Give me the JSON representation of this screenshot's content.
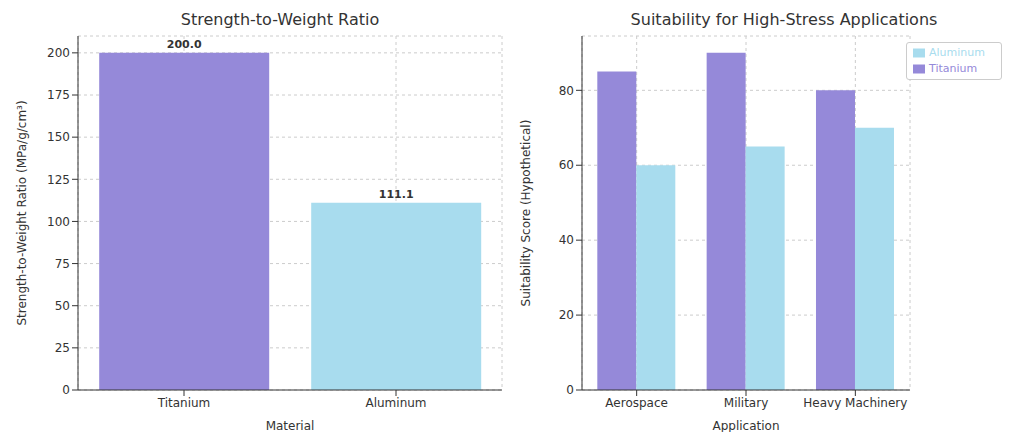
{
  "chart_data": [
    {
      "type": "bar",
      "title": "Strength-to-Weight Ratio",
      "x_label": "Material",
      "y_label": "Strength-to-Weight Ratio (MPa/g/cm³)",
      "categories": [
        "Titanium",
        "Aluminum"
      ],
      "values": [
        200.0,
        111.1
      ],
      "value_labels": [
        "200.0",
        "111.1"
      ],
      "data_labels": true,
      "colors": [
        "#9589d9",
        "#a8dcee"
      ],
      "ylim": [
        0,
        210
      ],
      "yticks": [
        0,
        25,
        50,
        75,
        100,
        125,
        150,
        175,
        200
      ],
      "grid": true
    },
    {
      "type": "bar",
      "title": "Suitability for High-Stress Applications",
      "x_label": "Application",
      "y_label": "Suitability Score (Hypothetical)",
      "categories": [
        "Aerospace",
        "Military",
        "Heavy Machinery"
      ],
      "series": [
        {
          "name": "Titanium",
          "color": "#9589d9",
          "values": [
            85,
            90,
            80
          ]
        },
        {
          "name": "Aluminum",
          "color": "#a8dcee",
          "values": [
            60,
            65,
            70
          ]
        }
      ],
      "ylim": [
        0,
        94.5
      ],
      "yticks": [
        0,
        20,
        40,
        60,
        80
      ],
      "grid": true,
      "legend": "upper right"
    }
  ]
}
